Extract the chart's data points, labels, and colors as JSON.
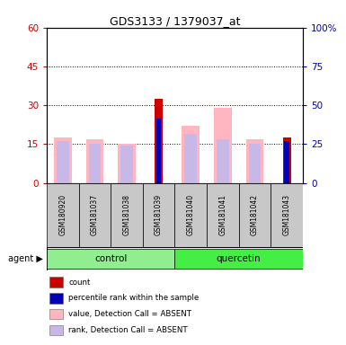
{
  "title": "GDS3133 / 1379037_at",
  "samples": [
    "GSM180920",
    "GSM181037",
    "GSM181038",
    "GSM181039",
    "GSM181040",
    "GSM181041",
    "GSM181042",
    "GSM181043"
  ],
  "count_values": [
    0,
    0,
    0,
    32.5,
    0,
    0,
    0,
    17.5
  ],
  "rank_values": [
    0,
    0,
    0,
    25.0,
    0,
    0,
    0,
    16.0
  ],
  "absent_value": [
    17.5,
    17.0,
    15.0,
    0,
    22.0,
    29.0,
    17.0,
    0
  ],
  "absent_rank": [
    16.0,
    15.0,
    14.5,
    0,
    19.0,
    17.0,
    15.0,
    0
  ],
  "ylim": [
    0,
    60
  ],
  "yticks": [
    0,
    15,
    30,
    45,
    60
  ],
  "ytick_labels": [
    "0",
    "15",
    "30",
    "45",
    "60"
  ],
  "y2ticks": [
    0,
    25,
    50,
    75,
    100
  ],
  "y2tick_labels": [
    "0",
    "25",
    "50",
    "75",
    "100%"
  ],
  "color_count": "#CC0000",
  "color_rank": "#0000BB",
  "color_absent_value": "#FFB6C1",
  "color_absent_rank": "#C8B8E8",
  "color_left_axis": "#CC0000",
  "color_right_axis": "#0000BB",
  "bg_sample": "#C8C8C8",
  "control_color": "#90EE90",
  "quercetin_color": "#44EE44",
  "legend_items": [
    "count",
    "percentile rank within the sample",
    "value, Detection Call = ABSENT",
    "rank, Detection Call = ABSENT"
  ],
  "legend_colors": [
    "#CC0000",
    "#0000BB",
    "#FFB6C1",
    "#C8B8E8"
  ]
}
